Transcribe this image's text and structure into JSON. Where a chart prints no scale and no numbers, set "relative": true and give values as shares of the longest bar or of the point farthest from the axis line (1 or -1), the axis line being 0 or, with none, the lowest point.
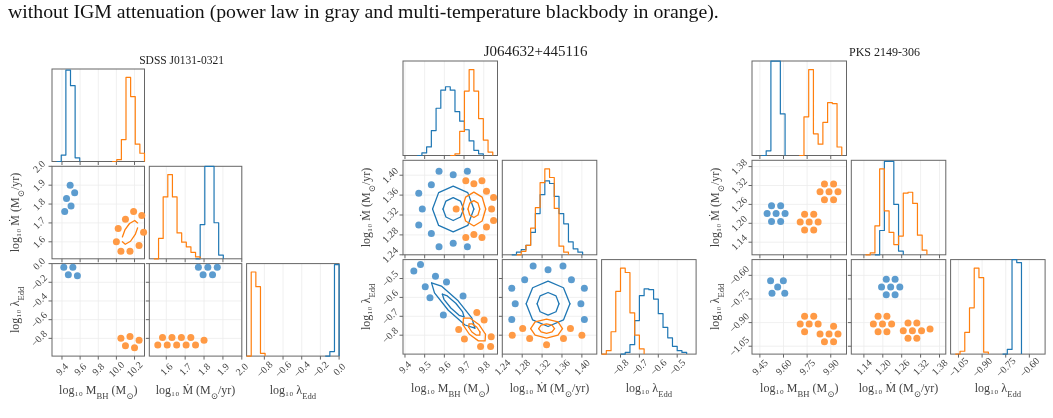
{
  "chart_data": [
    {
      "type": "step",
      "title": "SDSS J0131-0321",
      "annotations": [
        "without IGM attenuation (power law in gray and multi-temperature blackbody in orange)."
      ],
      "relative": true,
      "grid": "x",
      "tick_labels": false,
      "xlim": [
        9.29,
        10.31
      ],
      "xticks": [
        9.4,
        9.6,
        9.8,
        10,
        10.2
      ],
      "series": [
        {
          "color": "#ff7f0e",
          "x": [
            9.953,
            10.004,
            10.055,
            10.106,
            10.157,
            10.208,
            10.259,
            10.31
          ],
          "values": [
            0,
            0.02,
            0.24,
            0.92,
            0.71,
            0.19,
            0.09,
            0
          ]
        },
        {
          "color": "#1f77b4",
          "x": [
            9.341,
            9.392,
            9.443,
            9.494,
            9.545,
            9.596
          ],
          "values": [
            0,
            0.07,
            1,
            0.83,
            0.04,
            0
          ]
        }
      ]
    },
    {
      "type": "scatter",
      "ylabel": "log₁₀ Ṁ (M$_{⊙}$/yr)",
      "grid": true,
      "tick_labels": "y",
      "xlim": [
        9.29,
        10.31
      ],
      "xticks": [
        9.4,
        9.6,
        9.8,
        10,
        10.2
      ],
      "ylim": [
        1.51,
        2.0
      ],
      "yticks": [
        1.6,
        1.7,
        1.8,
        1.9,
        {
          "value": 2,
          "label": "2.0"
        }
      ],
      "series": [
        {
          "type": "line",
          "color": "#ff7f0e",
          "x": [
            10.066,
            10.096,
            10.145,
            10.202,
            10.234
          ],
          "values": [
            1.626,
            1.665,
            1.697,
            1.713,
            1.7
          ]
        },
        {
          "type": "line",
          "color": "#ff7f0e",
          "x": [
            10.066,
            10.098,
            10.156,
            10.21,
            10.234
          ],
          "values": [
            1.6,
            1.587,
            1.603,
            1.641,
            1.674
          ]
        },
        {
          "color": "#ff9a45",
          "x": [
            10.28,
            10.3,
            10.25,
            10.15,
            10.05,
            10.0,
            10.02,
            10.1,
            10.19
          ],
          "values": [
            1.74,
            1.65,
            1.58,
            1.55,
            1.55,
            1.6,
            1.67,
            1.72,
            1.76
          ]
        },
        {
          "color": "#5c9ccf",
          "x": [
            9.43,
            9.5,
            9.45,
            9.54,
            9.49
          ],
          "values": [
            1.76,
            1.79,
            1.83,
            1.86,
            1.9
          ]
        }
      ]
    },
    {
      "type": "step",
      "relative": true,
      "grid": "x",
      "tick_labels": false,
      "xlim": [
        1.51,
        2.0
      ],
      "xticks": [
        1.6,
        1.7,
        1.8,
        1.9,
        2
      ],
      "series": [
        {
          "color": "#ff7f0e",
          "x": [
            1.5345,
            1.559,
            1.5835,
            1.608,
            1.6325,
            1.657,
            1.6815,
            1.706,
            1.7305,
            1.755,
            1.7795
          ],
          "values": [
            0,
            0.22,
            0.67,
            0.91,
            0.67,
            0.28,
            0.18,
            0.13,
            0.07,
            0.02,
            0
          ]
        },
        {
          "color": "#1f77b4",
          "x": [
            1.755,
            1.7795,
            1.804,
            1.8285,
            1.853,
            1.8775,
            1.902
          ],
          "values": [
            0,
            0.37,
            1,
            1,
            0.39,
            0.04,
            0
          ]
        }
      ]
    },
    {
      "type": "scatter",
      "xlabel": "log₁₀ M$_{BH}$ (M$_{⊙}$)",
      "ylabel": "log₁₀ λ$_{Edd}$",
      "grid": true,
      "xlim": [
        9.29,
        10.31
      ],
      "xticks": [
        9.4,
        9.6,
        9.8,
        {
          "value": 10,
          "label": "10.0"
        },
        10.2
      ],
      "ylim": [
        -0.99,
        0
      ],
      "yticks": [
        {
          "value": -0.8,
          "label": "−0.8"
        },
        {
          "value": -0.6,
          "label": "−0.6"
        },
        {
          "value": -0.4,
          "label": "−0.4"
        },
        {
          "value": -0.2,
          "label": "−0.2"
        },
        {
          "value": 0,
          "label": "0.0"
        }
      ],
      "series": [
        {
          "color": "#ff9a45",
          "x": [
            10.05,
            10.15,
            10.25,
            10.1,
            10.2
          ],
          "values": [
            -0.8,
            -0.78,
            -0.82,
            -0.88,
            -0.9
          ]
        },
        {
          "color": "#5c9ccf",
          "x": [
            9.42,
            9.52,
            9.47,
            9.57
          ],
          "values": [
            -0.04,
            -0.04,
            -0.12,
            -0.13
          ]
        }
      ]
    },
    {
      "type": "scatter",
      "xlabel": "log₁₀ Ṁ (M$_{⊙}$/yr)",
      "grid": true,
      "tick_labels": "x",
      "xlim": [
        1.51,
        2.0
      ],
      "xticks": [
        1.6,
        1.7,
        1.8,
        1.9,
        {
          "value": 2,
          "label": "2.0"
        }
      ],
      "ylim": [
        -0.99,
        0
      ],
      "yticks": [
        -0.8,
        -0.6,
        -0.4,
        -0.2,
        0
      ],
      "series": [
        {
          "color": "#ff9a45",
          "x": [
            1.58,
            1.63,
            1.68,
            1.73,
            1.555,
            1.605,
            1.655,
            1.705,
            1.755,
            1.8
          ],
          "values": [
            -0.79,
            -0.79,
            -0.79,
            -0.79,
            -0.87,
            -0.87,
            -0.87,
            -0.87,
            -0.87,
            -0.82
          ]
        },
        {
          "color": "#5c9ccf",
          "x": [
            1.77,
            1.82,
            1.87,
            1.795,
            1.845
          ],
          "values": [
            -0.04,
            -0.04,
            -0.04,
            -0.12,
            -0.12
          ]
        }
      ]
    },
    {
      "type": "step",
      "xlabel": "log₁₀ λ$_{Edd}$",
      "relative": true,
      "grid": "x",
      "tick_labels": "x",
      "xlim": [
        -0.99,
        0
      ],
      "xticks": [
        {
          "value": -0.8,
          "label": "−0.8"
        },
        {
          "value": -0.6,
          "label": "−0.6"
        },
        {
          "value": -0.4,
          "label": "−0.4"
        },
        {
          "value": -0.2,
          "label": "−0.2"
        },
        {
          "value": 0,
          "label": "0.0"
        }
      ],
      "series": [
        {
          "color": "#ff7f0e",
          "x": [
            -0.99,
            -0.9405,
            -0.891,
            -0.8415,
            -0.792
          ],
          "values": [
            0,
            0.92,
            0.76,
            0.03,
            0
          ]
        },
        {
          "color": "#1f77b4",
          "x": [
            -0.1485,
            -0.099,
            -0.0495,
            0
          ],
          "values": [
            0,
            0.05,
            1,
            0
          ]
        }
      ]
    },
    {
      "type": "step",
      "title": "J064632+445116",
      "relative": true,
      "grid": "x",
      "tick_labels": false,
      "xlim": [
        9.39,
        9.87
      ],
      "xticks": [
        9.4,
        9.5,
        9.6,
        9.7,
        9.8
      ],
      "series": [
        {
          "color": "#ff7f0e",
          "x": [
            9.63,
            9.654,
            9.678,
            9.702,
            9.726,
            9.75,
            9.774,
            9.798,
            9.822,
            9.846
          ],
          "values": [
            0,
            0.02,
            0.28,
            0.75,
            1,
            0.75,
            0.43,
            0.18,
            0.04,
            0
          ]
        },
        {
          "color": "#1f77b4",
          "x": [
            9.462,
            9.486,
            9.51,
            9.534,
            9.558,
            9.582,
            9.606,
            9.63,
            9.654,
            9.678,
            9.702,
            9.726,
            9.75,
            9.774,
            9.798
          ],
          "values": [
            0,
            0.03,
            0.1,
            0.29,
            0.55,
            0.76,
            0.8,
            0.76,
            0.51,
            0.4,
            0.3,
            0.17,
            0.06,
            0.02,
            0
          ]
        }
      ]
    },
    {
      "type": "scatter",
      "ylabel": "log₁₀ Ṁ (M$_{⊙}$/yr)",
      "grid": true,
      "tick_labels": "y",
      "xlim": [
        9.39,
        9.87
      ],
      "xticks": [
        9.4,
        9.5,
        9.6,
        9.7,
        9.8
      ],
      "ylim": [
        1.24,
        1.43
      ],
      "yticks": [
        1.24,
        1.28,
        1.32,
        1.36,
        {
          "value": 1.4,
          "label": "1.40"
        }
      ],
      "series": [
        {
          "type": "line",
          "color": "#ff7f0e",
          "x": [
            9.69,
            9.708,
            9.75,
            9.792,
            9.81
          ],
          "values": [
            1.332,
            1.356,
            1.366,
            1.356,
            1.332
          ]
        },
        {
          "type": "line",
          "color": "#ff7f0e",
          "x": [
            9.69,
            9.708,
            9.75,
            9.792,
            9.81
          ],
          "values": [
            1.332,
            1.308,
            1.298,
            1.308,
            1.332
          ]
        },
        {
          "type": "line",
          "color": "#ff7f0e",
          "x": [
            9.72,
            9.729,
            9.75,
            9.771,
            9.78
          ],
          "values": [
            1.332,
            1.344,
            1.349,
            1.344,
            1.332
          ]
        },
        {
          "type": "line",
          "color": "#ff7f0e",
          "x": [
            9.72,
            9.729,
            9.75,
            9.771,
            9.78
          ],
          "values": [
            1.332,
            1.32,
            1.315,
            1.32,
            1.332
          ]
        },
        {
          "color": "#ff9a45",
          "x": [
            9.84,
            9.814,
            9.75,
            9.66,
            9.75,
            9.814,
            9.85,
            9.791,
            9.709,
            9.709,
            9.791,
            9.85
          ],
          "values": [
            1.332,
            1.368,
            1.383,
            1.332,
            1.281,
            1.296,
            1.355,
            1.389,
            1.389,
            1.275,
            1.275,
            1.309
          ]
        },
        {
          "type": "line",
          "color": "#1f77b4",
          "x": [
            9.54,
            9.571,
            9.645,
            9.719,
            9.75
          ],
          "values": [
            1.332,
            1.365,
            1.378,
            1.365,
            1.332
          ]
        },
        {
          "type": "line",
          "color": "#1f77b4",
          "x": [
            9.54,
            9.571,
            9.645,
            9.719,
            9.75
          ],
          "values": [
            1.332,
            1.299,
            1.286,
            1.299,
            1.332
          ]
        },
        {
          "type": "line",
          "color": "#1f77b4",
          "x": [
            9.593,
            9.608,
            9.645,
            9.682,
            9.698
          ],
          "values": [
            1.332,
            1.348,
            1.355,
            1.348,
            1.332
          ]
        },
        {
          "type": "line",
          "color": "#1f77b4",
          "x": [
            9.593,
            9.608,
            9.645,
            9.682,
            9.698
          ],
          "values": [
            1.332,
            1.316,
            1.309,
            1.316,
            1.332
          ]
        },
        {
          "color": "#5c9ccf",
          "x": [
            9.645,
            9.534,
            9.488,
            9.534,
            9.645,
            9.717,
            9.573,
            9.47,
            9.47,
            9.573,
            9.717
          ],
          "values": [
            1.401,
            1.381,
            1.332,
            1.283,
            1.263,
            1.408,
            1.408,
            1.364,
            1.3,
            1.256,
            1.256
          ]
        }
      ]
    },
    {
      "type": "step",
      "relative": true,
      "grid": "x",
      "tick_labels": false,
      "xlim": [
        1.24,
        1.43
      ],
      "xticks": [
        1.24,
        1.28,
        1.32,
        1.36,
        1.4
      ],
      "series": [
        {
          "color": "#ff7f0e",
          "x": [
            1.2685,
            1.278,
            1.2875,
            1.297,
            1.3065,
            1.316,
            1.3255,
            1.335,
            1.3445,
            1.354,
            1.3635,
            1.373
          ],
          "values": [
            0,
            0.04,
            0.11,
            0.31,
            0.55,
            0.84,
            1,
            0.9,
            0.54,
            0.1,
            0.03,
            0
          ]
        },
        {
          "color": "#1f77b4",
          "x": [
            1.259,
            1.2685,
            1.278,
            1.2875,
            1.297,
            1.3065,
            1.316,
            1.3255,
            1.335,
            1.3445,
            1.354,
            1.3635,
            1.373,
            1.3825,
            1.392,
            1.4015
          ],
          "values": [
            0,
            0.03,
            0.06,
            0.11,
            0.26,
            0.48,
            0.7,
            0.86,
            0.83,
            0.68,
            0.48,
            0.36,
            0.15,
            0.07,
            0.03,
            0
          ]
        }
      ]
    },
    {
      "type": "scatter",
      "xlabel": "log₁₀ M$_{BH}$ (M$_{⊙}$)",
      "ylabel": "log₁₀ λ$_{Edd}$",
      "grid": true,
      "xlim": [
        9.39,
        9.87
      ],
      "xticks": [
        9.4,
        9.5,
        9.6,
        9.7,
        9.8
      ],
      "ylim": [
        -0.9,
        -0.4
      ],
      "yticks": [
        {
          "value": -0.8,
          "label": "−0.8"
        },
        {
          "value": -0.7,
          "label": "−0.7"
        },
        {
          "value": -0.6,
          "label": "−0.6"
        },
        {
          "value": -0.5,
          "label": "−0.5"
        }
      ],
      "series": [
        {
          "type": "line",
          "color": "#ff7f0e",
          "x": [
            9.695,
            9.697,
            9.731,
            9.777,
            9.809
          ],
          "values": [
            -0.745,
            -0.71,
            -0.71,
            -0.745,
            -0.795
          ]
        },
        {
          "type": "line",
          "color": "#ff7f0e",
          "x": [
            9.695,
            9.727,
            9.773,
            9.807,
            9.809
          ],
          "values": [
            -0.745,
            -0.795,
            -0.83,
            -0.83,
            -0.795
          ]
        },
        {
          "type": "line",
          "color": "#ff7f0e",
          "x": [
            9.724,
            9.725,
            9.742,
            9.765,
            9.781
          ],
          "values": [
            -0.758,
            -0.74,
            -0.74,
            -0.758,
            -0.783
          ]
        },
        {
          "type": "line",
          "color": "#ff7f0e",
          "x": [
            9.724,
            9.74,
            9.763,
            9.78,
            9.781
          ],
          "values": [
            -0.758,
            -0.783,
            -0.8,
            -0.8,
            -0.783
          ]
        },
        {
          "color": "#ff9a45",
          "x": [
            9.835,
            9.838,
            9.802,
            9.702,
            9.784,
            9.765,
            9.673
          ],
          "values": [
            -0.86,
            -0.808,
            -0.72,
            -0.82,
            -0.86,
            -0.68,
            -0.77
          ]
        },
        {
          "type": "line",
          "color": "#1f77b4",
          "x": [
            9.535,
            9.585,
            9.67,
            9.74,
            9.755
          ],
          "values": [
            -0.523,
            -0.54,
            -0.618,
            -0.71,
            -0.763
          ]
        },
        {
          "type": "line",
          "color": "#1f77b4",
          "x": [
            9.535,
            9.55,
            9.62,
            9.705,
            9.755
          ],
          "values": [
            -0.523,
            -0.576,
            -0.668,
            -0.746,
            -0.763
          ]
        },
        {
          "type": "line",
          "color": "#1f77b4",
          "x": [
            9.59,
            9.615,
            9.658,
            9.693,
            9.7
          ],
          "values": [
            -0.583,
            -0.592,
            -0.631,
            -0.677,
            -0.703
          ]
        },
        {
          "type": "line",
          "color": "#1f77b4",
          "x": [
            9.59,
            9.598,
            9.633,
            9.675,
            9.7
          ],
          "values": [
            -0.583,
            -0.61,
            -0.656,
            -0.695,
            -0.703
          ]
        },
        {
          "color": "#5c9ccf",
          "x": [
            9.695,
            9.555,
            9.503,
            9.595,
            9.611,
            9.479,
            9.445,
            9.527
          ],
          "values": [
            -0.593,
            -0.488,
            -0.543,
            -0.693,
            -0.518,
            -0.426,
            -0.46,
            -0.602
          ]
        }
      ]
    },
    {
      "type": "scatter",
      "xlabel": "log₁₀ Ṁ (M$_{⊙}$/yr)",
      "grid": true,
      "tick_labels": "x",
      "xlim": [
        1.24,
        1.43
      ],
      "xticks": [
        1.24,
        1.28,
        1.32,
        1.36,
        {
          "value": 1.4,
          "label": "1.40"
        }
      ],
      "ylim": [
        -0.9,
        -0.4
      ],
      "yticks": [
        -0.8,
        -0.7,
        -0.6,
        -0.5
      ],
      "series": [
        {
          "type": "line",
          "color": "#ff7f0e",
          "x": [
            1.297,
            1.306,
            1.329,
            1.352,
            1.361
          ],
          "values": [
            -0.765,
            -0.73,
            -0.715,
            -0.73,
            -0.765
          ]
        },
        {
          "type": "line",
          "color": "#ff7f0e",
          "x": [
            1.297,
            1.306,
            1.329,
            1.352,
            1.361
          ],
          "values": [
            -0.765,
            -0.8,
            -0.815,
            -0.8,
            -0.765
          ]
        },
        {
          "type": "line",
          "color": "#ff7f0e",
          "x": [
            1.313,
            1.318,
            1.329,
            1.34,
            1.345
          ],
          "values": [
            -0.765,
            -0.747,
            -0.74,
            -0.747,
            -0.765
          ]
        },
        {
          "type": "line",
          "color": "#ff7f0e",
          "x": [
            1.313,
            1.318,
            1.329,
            1.34,
            1.345
          ],
          "values": [
            -0.765,
            -0.783,
            -0.79,
            -0.783,
            -0.765
          ]
        },
        {
          "color": "#ff9a45",
          "x": [
            1.377,
            1.363,
            1.329,
            1.295,
            1.281,
            1.4,
            1.26
          ],
          "values": [
            -0.765,
            -0.818,
            -0.85,
            -0.818,
            -0.765,
            -0.8,
            -0.8
          ]
        },
        {
          "type": "line",
          "color": "#1f77b4",
          "x": [
            1.288,
            1.301,
            1.332,
            1.363,
            1.376
          ],
          "values": [
            -0.634,
            -0.549,
            -0.514,
            -0.549,
            -0.634
          ]
        },
        {
          "type": "line",
          "color": "#1f77b4",
          "x": [
            1.288,
            1.301,
            1.332,
            1.363,
            1.376
          ],
          "values": [
            -0.634,
            -0.719,
            -0.754,
            -0.719,
            -0.634
          ]
        },
        {
          "type": "line",
          "color": "#1f77b4",
          "x": [
            1.31,
            1.316,
            1.332,
            1.348,
            1.354
          ],
          "values": [
            -0.634,
            -0.592,
            -0.574,
            -0.592,
            -0.634
          ]
        },
        {
          "type": "line",
          "color": "#1f77b4",
          "x": [
            1.31,
            1.316,
            1.332,
            1.348,
            1.354
          ],
          "values": [
            -0.634,
            -0.676,
            -0.694,
            -0.676,
            -0.634
          ]
        },
        {
          "color": "#5c9ccf",
          "x": [
            1.398,
            1.379,
            1.332,
            1.285,
            1.266,
            1.405,
            1.362,
            1.302,
            1.259,
            1.259,
            1.405
          ],
          "values": [
            -0.634,
            -0.507,
            -0.454,
            -0.507,
            -0.634,
            -0.551,
            -0.434,
            -0.434,
            -0.551,
            -0.717,
            -0.717
          ]
        }
      ]
    },
    {
      "type": "step",
      "xlabel": "log₁₀ λ$_{Edd}$",
      "relative": true,
      "grid": "x",
      "tick_labels": "x",
      "xlim": [
        -0.9,
        -0.4
      ],
      "xticks": [
        {
          "value": -0.8,
          "label": "−0.8"
        },
        {
          "value": -0.7,
          "label": "−0.7"
        },
        {
          "value": -0.6,
          "label": "−0.6"
        },
        {
          "value": -0.5,
          "label": "−0.5"
        }
      ],
      "series": [
        {
          "color": "#ff7f0e",
          "x": [
            -0.9,
            -0.875,
            -0.85,
            -0.825,
            -0.8,
            -0.775,
            -0.75,
            -0.725,
            -0.7,
            -0.675
          ],
          "values": [
            0,
            0.04,
            0.26,
            0.73,
            1,
            0.95,
            0.48,
            0.22,
            0.06,
            0
          ]
        },
        {
          "color": "#1f77b4",
          "x": [
            -0.8,
            -0.775,
            -0.75,
            -0.725,
            -0.7,
            -0.675,
            -0.65,
            -0.625,
            -0.6,
            -0.575,
            -0.55,
            -0.525,
            -0.5,
            -0.475,
            -0.45
          ],
          "values": [
            0,
            0.02,
            0.11,
            0.39,
            0.68,
            0.76,
            0.75,
            0.64,
            0.47,
            0.31,
            0.19,
            0.09,
            0.04,
            0.02,
            0
          ]
        }
      ]
    },
    {
      "type": "step",
      "title": "PKS 2149-306",
      "relative": true,
      "grid": "x",
      "tick_labels": false,
      "xlim": [
        9.4,
        10.0
      ],
      "xticks": [
        9.45,
        9.6,
        9.75,
        9.9
      ],
      "series": [
        {
          "color": "#ff7f0e",
          "x": [
            9.7,
            9.73,
            9.76,
            9.79,
            9.82,
            9.85,
            9.88,
            9.91,
            9.94,
            9.97
          ],
          "values": [
            0,
            0.41,
            0.91,
            0.23,
            0.12,
            0.35,
            0.56,
            0.55,
            0.09,
            0
          ]
        },
        {
          "color": "#1f77b4",
          "x": [
            9.46,
            9.49,
            9.52,
            9.55,
            9.58,
            9.61
          ],
          "values": [
            0,
            0.05,
            1,
            1,
            0.44,
            0
          ]
        }
      ]
    },
    {
      "type": "scatter",
      "ylabel": "log₁₀ Ṁ (M$_{⊙}$/yr)",
      "grid": true,
      "tick_labels": "y",
      "xlim": [
        9.4,
        10.0
      ],
      "xticks": [
        9.45,
        9.6,
        9.75,
        9.9
      ],
      "ylim": [
        1.1,
        1.4
      ],
      "yticks": [
        1.14,
        {
          "value": 1.2,
          "label": "1.20"
        },
        1.26,
        1.32,
        1.38
      ],
      "series": [
        {
          "color": "#ff9a45",
          "x": [
            9.82,
            9.792,
            9.734,
            9.706,
            9.734,
            9.792,
            9.763,
            9.946,
            9.918,
            9.86,
            9.832,
            9.86,
            9.918,
            9.889
          ],
          "values": [
            1.204,
            1.229,
            1.229,
            1.204,
            1.179,
            1.179,
            1.204,
            1.3,
            1.325,
            1.325,
            1.3,
            1.275,
            1.275,
            1.3
          ]
        },
        {
          "color": "#5c9ccf",
          "x": [
            9.61,
            9.582,
            9.524,
            9.496,
            9.524,
            9.582,
            9.553
          ],
          "values": [
            1.231,
            1.256,
            1.256,
            1.231,
            1.206,
            1.206,
            1.231
          ]
        }
      ]
    },
    {
      "type": "step",
      "relative": true,
      "grid": "x",
      "tick_labels": false,
      "xlim": [
        1.1,
        1.4
      ],
      "xticks": [
        1.14,
        1.2,
        1.26,
        1.32,
        1.38
      ],
      "series": [
        {
          "color": "#ff7f0e",
          "x": [
            1.145,
            1.16,
            1.175,
            1.19,
            1.205,
            1.22,
            1.235,
            1.25,
            1.265,
            1.28,
            1.295,
            1.31,
            1.325,
            1.34
          ],
          "values": [
            0,
            0.02,
            0.31,
            0.92,
            0.47,
            0.24,
            0.11,
            0.2,
            0.66,
            0.67,
            0.55,
            0.21,
            0.05,
            0
          ]
        },
        {
          "color": "#1f77b4",
          "x": [
            1.175,
            1.19,
            1.205,
            1.22,
            1.235,
            1.25,
            1.265
          ],
          "values": [
            0,
            0.26,
            1,
            1,
            0.54,
            0.04,
            0
          ]
        }
      ]
    },
    {
      "type": "scatter",
      "xlabel": "log₁₀ M$_{BH}$ (M$_{⊙}$)",
      "ylabel": "log₁₀ λ$_{Edd}$",
      "grid": true,
      "xlim": [
        9.4,
        10.0
      ],
      "xticks": [
        9.45,
        {
          "value": 9.6,
          "label": "9.60"
        },
        9.75,
        {
          "value": 9.9,
          "label": "9.90"
        }
      ],
      "ylim": [
        -1.1,
        -0.5
      ],
      "yticks": [
        {
          "value": -1.05,
          "label": "−1.05"
        },
        {
          "value": -0.9,
          "label": "−0.90"
        },
        {
          "value": -0.75,
          "label": "−0.75"
        },
        {
          "value": -0.6,
          "label": "−0.60"
        }
      ],
      "series": [
        {
          "color": "#ff9a45",
          "x": [
            9.82,
            9.792,
            9.734,
            9.706,
            9.734,
            9.763,
            9.946,
            9.918,
            9.832,
            9.86,
            9.918,
            9.889
          ],
          "values": [
            -0.909,
            -0.86,
            -0.86,
            -0.909,
            -0.958,
            -0.909,
            -0.972,
            -0.923,
            -0.972,
            -1.021,
            -1.021,
            -0.972
          ]
        },
        {
          "color": "#5c9ccf",
          "x": [
            9.563,
            9.608,
            9.518,
            9.599,
            9.527
          ],
          "values": [
            -0.674,
            -0.714,
            -0.634,
            -0.634,
            -0.714
          ]
        }
      ]
    },
    {
      "type": "scatter",
      "xlabel": "log₁₀ Ṁ (M$_{⊙}$/yr)",
      "grid": true,
      "tick_labels": "x",
      "xlim": [
        1.1,
        1.4
      ],
      "xticks": [
        1.14,
        {
          "value": 1.2,
          "label": "1.20"
        },
        1.26,
        1.32,
        1.38
      ],
      "ylim": [
        -1.1,
        -0.5
      ],
      "yticks": [
        -1.05,
        -0.9,
        -0.75,
        -0.6
      ],
      "series": [
        {
          "color": "#ff9a45",
          "x": [
            1.228,
            1.213,
            1.185,
            1.17,
            1.185,
            1.213,
            1.199,
            1.323,
            1.308,
            1.28,
            1.265,
            1.28,
            1.308,
            1.294,
            1.35
          ],
          "values": [
            -0.909,
            -0.86,
            -0.86,
            -0.909,
            -0.958,
            -0.958,
            -0.909,
            -0.951,
            -0.902,
            -0.902,
            -0.951,
            -1.0,
            -1.0,
            -0.951,
            -0.94
          ]
        },
        {
          "color": "#5c9ccf",
          "x": [
            1.254,
            1.239,
            1.211,
            1.196,
            1.211,
            1.239,
            1.225
          ],
          "values": [
            -0.674,
            -0.625,
            -0.625,
            -0.674,
            -0.723,
            -0.723,
            -0.674
          ]
        }
      ]
    },
    {
      "type": "step",
      "xlabel": "log₁₀ λ$_{Edd}$",
      "relative": true,
      "grid": "x",
      "tick_labels": "x",
      "xlim": [
        -1.1,
        -0.5
      ],
      "xticks": [
        {
          "value": -1.05,
          "label": "−1.05"
        },
        {
          "value": -0.9,
          "label": "−0.90"
        },
        {
          "value": -0.75,
          "label": "−0.75"
        },
        {
          "value": -0.6,
          "label": "−0.60"
        }
      ],
      "series": [
        {
          "color": "#ff7f0e",
          "x": [
            -1.07,
            -1.04,
            -1.01,
            -0.98,
            -0.95,
            -0.92,
            -0.89,
            -0.86
          ],
          "values": [
            0,
            0.03,
            0.23,
            0.49,
            0.91,
            0.81,
            0.02,
            0
          ]
        },
        {
          "color": "#1f77b4",
          "x": [
            -0.77,
            -0.74,
            -0.71,
            -0.68,
            -0.65
          ],
          "values": [
            0,
            0.05,
            1,
            0.97,
            0
          ]
        }
      ]
    }
  ]
}
